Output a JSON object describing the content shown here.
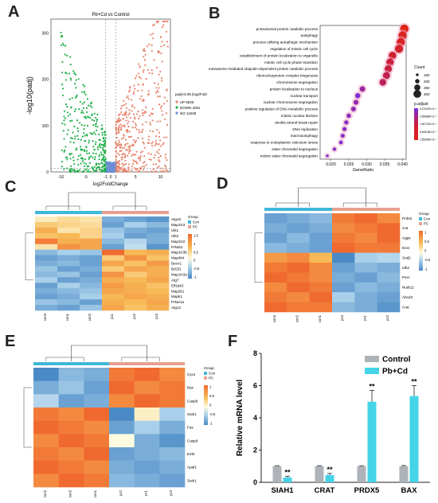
{
  "panel_labels": [
    "A",
    "B",
    "C",
    "D",
    "E",
    "F"
  ],
  "chart_data": [
    {
      "panel": "A",
      "type": "scatter",
      "title": "Pb+Cd vs Control",
      "xlabel": "log2FoldChange",
      "ylabel": "-log10(padj)",
      "xticks": [
        "-10",
        "-5",
        "-1",
        "0",
        "1",
        "5",
        "10"
      ],
      "yticks": [
        "0",
        "100",
        "200",
        "300"
      ],
      "legend_title": "padj<0.05 |log2FoldChange|>1",
      "series": [
        {
          "name": "UP 5925",
          "color": "#e8836b"
        },
        {
          "name": "DOWN 4081",
          "color": "#22b04b"
        },
        {
          "name": "NO 11538",
          "color": "#6c8fd6"
        }
      ],
      "thresholds": {
        "log2fc": [
          -1,
          1
        ],
        "neg_log10_padj": 1.3
      }
    },
    {
      "panel": "B",
      "type": "scatter",
      "xlabel": "GeneRatio",
      "xticks": [
        "0.020",
        "0.025",
        "0.030",
        "0.035",
        "0.040"
      ],
      "xlim": [
        0.017,
        0.041
      ],
      "terms": [
        {
          "name": "proteasomal protein catabolic process",
          "ratio": 0.0405,
          "count": 320,
          "p": 2e-10
        },
        {
          "name": "autophagy",
          "ratio": 0.04,
          "count": 316,
          "p": 1e-09
        },
        {
          "name": "process utilizing autophagic mechanism",
          "ratio": 0.0395,
          "count": 316,
          "p": 1e-09
        },
        {
          "name": "regulation of mitotic cell cycle",
          "ratio": 0.039,
          "count": 310,
          "p": 3e-09
        },
        {
          "name": "establishment of protein localization to organelle",
          "ratio": 0.0372,
          "count": 295,
          "p": 1e-08
        },
        {
          "name": "mitotic cell cycle phase transition",
          "ratio": 0.0365,
          "count": 290,
          "p": 2e-08
        },
        {
          "name": "proteasome-mediated ubiquitin-dependent protein catabolic process",
          "ratio": 0.036,
          "count": 285,
          "p": 4e-08
        },
        {
          "name": "ribonucleoprotein complex biogenesis",
          "ratio": 0.0355,
          "count": 280,
          "p": 6e-08
        },
        {
          "name": "chromosome segregation",
          "ratio": 0.0345,
          "count": 270,
          "p": 1e-07
        },
        {
          "name": "protein localization to nucleus",
          "ratio": 0.0288,
          "count": 230,
          "p": 8e-07
        },
        {
          "name": "nuclear transport",
          "ratio": 0.0275,
          "count": 220,
          "p": 5e-06
        },
        {
          "name": "nuclear chromosome segregation",
          "ratio": 0.027,
          "count": 215,
          "p": 1.5e-06
        },
        {
          "name": "positive regulation of DNA metabolic process",
          "ratio": 0.0263,
          "count": 210,
          "p": 2e-06
        },
        {
          "name": "mitotic nuclear division",
          "ratio": 0.025,
          "count": 200,
          "p": 2.5e-06
        },
        {
          "name": "double-strand break repair",
          "ratio": 0.0243,
          "count": 195,
          "p": 3e-06
        },
        {
          "name": "DNA replication",
          "ratio": 0.0238,
          "count": 190,
          "p": 3e-06
        },
        {
          "name": "macroautophagy",
          "ratio": 0.0233,
          "count": 185,
          "p": 3.5e-06
        },
        {
          "name": "response to endoplasmic reticulum stress",
          "ratio": 0.0228,
          "count": 180,
          "p": 6e-06
        },
        {
          "name": "sister chromatid segregation",
          "ratio": 0.021,
          "count": 168,
          "p": 4e-06
        },
        {
          "name": "mitotic sister chromatid segregation",
          "ratio": 0.019,
          "count": 150,
          "p": 4.5e-06
        }
      ],
      "legend": {
        "count_title": "Count",
        "count_values": [
          "150",
          "200",
          "250",
          "300"
        ],
        "color_title": "p.adjust",
        "color_values": [
          "5.370478×10⁻⁶",
          "3.556898×10⁻⁶",
          "1.567223×10⁻⁶",
          "6.465138×10⁻⁷",
          "2.556983×10⁻⁷"
        ]
      }
    },
    {
      "panel": "C",
      "type": "heatmap",
      "legend_title": "Group",
      "legend_groups": [
        "Con",
        "PC"
      ],
      "scale_ticks": [
        "1.5",
        "1",
        "0.5",
        "0",
        "-0.5",
        "-1"
      ],
      "columns": [
        "con3",
        "con1",
        "con2",
        "pc1",
        "pc2",
        "pc3"
      ],
      "rows": [
        "Atg16",
        "Map1lc3",
        "Ulk1",
        "Ulk2",
        "Map1lc2",
        "Prkab1",
        "Map1lc3b",
        "Map4k4",
        "Becn1",
        "Bcl2l1",
        "Map1lc3a",
        "Atg7",
        "Eif2ak3",
        "Map2k1",
        "Mapk1",
        "Prkar1a",
        "Atg12"
      ],
      "values": [
        [
          0.2,
          0.4,
          0.3,
          -0.9,
          -1.0,
          -1.1
        ],
        [
          0.6,
          0.5,
          0.4,
          -1.0,
          -0.6,
          -0.8
        ],
        [
          0.9,
          0.3,
          0.5,
          -0.7,
          -0.9,
          -1.0
        ],
        [
          0.7,
          0.8,
          0.5,
          -0.6,
          -1.0,
          -0.9
        ],
        [
          1.4,
          0.9,
          1.0,
          -0.8,
          -0.5,
          -0.9
        ],
        [
          0.3,
          1.2,
          1.0,
          -1.0,
          -0.4,
          -1.1
        ],
        [
          -0.8,
          -0.6,
          -0.7,
          1.6,
          0.8,
          0.9
        ],
        [
          -1.0,
          -0.9,
          -1.0,
          0.6,
          1.2,
          0.7
        ],
        [
          -0.9,
          -0.8,
          -1.0,
          1.0,
          0.7,
          1.1
        ],
        [
          -0.7,
          -1.0,
          -0.9,
          0.6,
          1.0,
          0.9
        ],
        [
          -0.8,
          -0.7,
          -1.0,
          1.2,
          0.6,
          0.9
        ],
        [
          -0.6,
          -1.0,
          -0.9,
          0.9,
          0.8,
          1.0
        ],
        [
          -1.0,
          -0.6,
          -0.8,
          1.1,
          0.9,
          0.7
        ],
        [
          -0.9,
          -0.8,
          -0.7,
          1.0,
          0.9,
          0.8
        ],
        [
          -1.0,
          -0.9,
          -0.6,
          0.8,
          1.0,
          0.9
        ],
        [
          -0.7,
          -0.8,
          -1.0,
          0.9,
          0.8,
          1.0
        ],
        [
          -0.9,
          -1.0,
          -0.7,
          1.0,
          0.7,
          0.9
        ]
      ]
    },
    {
      "panel": "D",
      "type": "heatmap",
      "legend_title": "Group",
      "legend_groups": [
        "Con",
        "PC"
      ],
      "scale_ticks": [
        "1",
        "0.5",
        "0",
        "-0.5",
        "-1"
      ],
      "columns": [
        "con3",
        "con2",
        "con1",
        "pc3",
        "pc1",
        "pc2"
      ],
      "rows": [
        "Prdx5",
        "Cat",
        "Agps",
        "Decr",
        "Sod2",
        "Idh2",
        "Pecr",
        "Nudt12",
        "Abcd3",
        "Crat"
      ],
      "values": [
        [
          -1.0,
          -0.9,
          -0.8,
          0.9,
          1.0,
          0.8
        ],
        [
          -0.9,
          -1.0,
          -0.9,
          0.8,
          0.9,
          1.0
        ],
        [
          -1.0,
          -0.8,
          -1.0,
          0.9,
          0.8,
          1.0
        ],
        [
          -0.8,
          -0.9,
          -1.0,
          1.0,
          0.9,
          0.9
        ],
        [
          0.7,
          0.8,
          0.5,
          -1.2,
          -0.6,
          -0.5
        ],
        [
          0.9,
          1.0,
          0.8,
          -1.0,
          -0.8,
          -0.9
        ],
        [
          1.0,
          0.9,
          0.8,
          -0.9,
          -1.0,
          -0.8
        ],
        [
          0.8,
          1.0,
          0.9,
          -1.0,
          -0.8,
          -0.9
        ],
        [
          0.9,
          0.8,
          1.0,
          -0.6,
          -0.9,
          -1.0
        ],
        [
          1.0,
          0.9,
          0.9,
          -0.8,
          -0.9,
          -1.1
        ]
      ]
    },
    {
      "panel": "E",
      "type": "heatmap",
      "legend_title": "Group",
      "legend_groups": [
        "Con",
        "PC"
      ],
      "scale_ticks": [
        "1",
        "0.5",
        "0",
        "-0.5",
        "-1"
      ],
      "columns": [
        "con2",
        "con3",
        "con1",
        "pc2",
        "pc1",
        "pc3"
      ],
      "rows": [
        "Cycs",
        "Bax",
        "Casp6",
        "Siah1",
        "Fas",
        "Casp9",
        "E2f4",
        "Apaf1",
        "Siah1"
      ],
      "values": [
        [
          -1.4,
          -0.8,
          -0.9,
          0.9,
          1.0,
          0.8
        ],
        [
          -0.9,
          -0.7,
          -1.0,
          1.0,
          0.8,
          0.9
        ],
        [
          -0.5,
          -1.0,
          -0.9,
          0.8,
          1.0,
          0.9
        ],
        [
          0.9,
          0.8,
          1.0,
          -1.3,
          0.1,
          -0.6
        ],
        [
          1.0,
          0.9,
          0.8,
          -1.0,
          -0.6,
          -0.9
        ],
        [
          0.8,
          1.0,
          0.9,
          0.0,
          -0.9,
          -1.1
        ],
        [
          0.9,
          0.8,
          1.0,
          -1.0,
          -0.9,
          -0.8
        ],
        [
          1.0,
          0.9,
          0.8,
          -0.9,
          -1.0,
          -0.9
        ],
        [
          0.8,
          1.0,
          0.9,
          -0.8,
          -0.9,
          -1.0
        ]
      ]
    },
    {
      "panel": "F",
      "type": "bar",
      "ylabel": "Relative mRNA level",
      "ylim": [
        0,
        8
      ],
      "yticks": [
        "0",
        "2",
        "4",
        "6",
        "8"
      ],
      "categories": [
        "SIAH1",
        "CRAT",
        "PRDX5",
        "BAX"
      ],
      "series": [
        {
          "name": "Control",
          "color": "#adb3b8",
          "values": [
            1.0,
            1.0,
            1.0,
            1.0
          ],
          "errors": [
            0.03,
            0.03,
            0.03,
            0.04
          ]
        },
        {
          "name": "Pb+Cd",
          "color": "#45d3e8",
          "values": [
            0.3,
            0.45,
            5.0,
            5.35
          ],
          "errors": [
            0.08,
            0.1,
            0.7,
            0.65
          ]
        }
      ],
      "significance": [
        "**",
        "**",
        "**",
        "**"
      ]
    }
  ]
}
